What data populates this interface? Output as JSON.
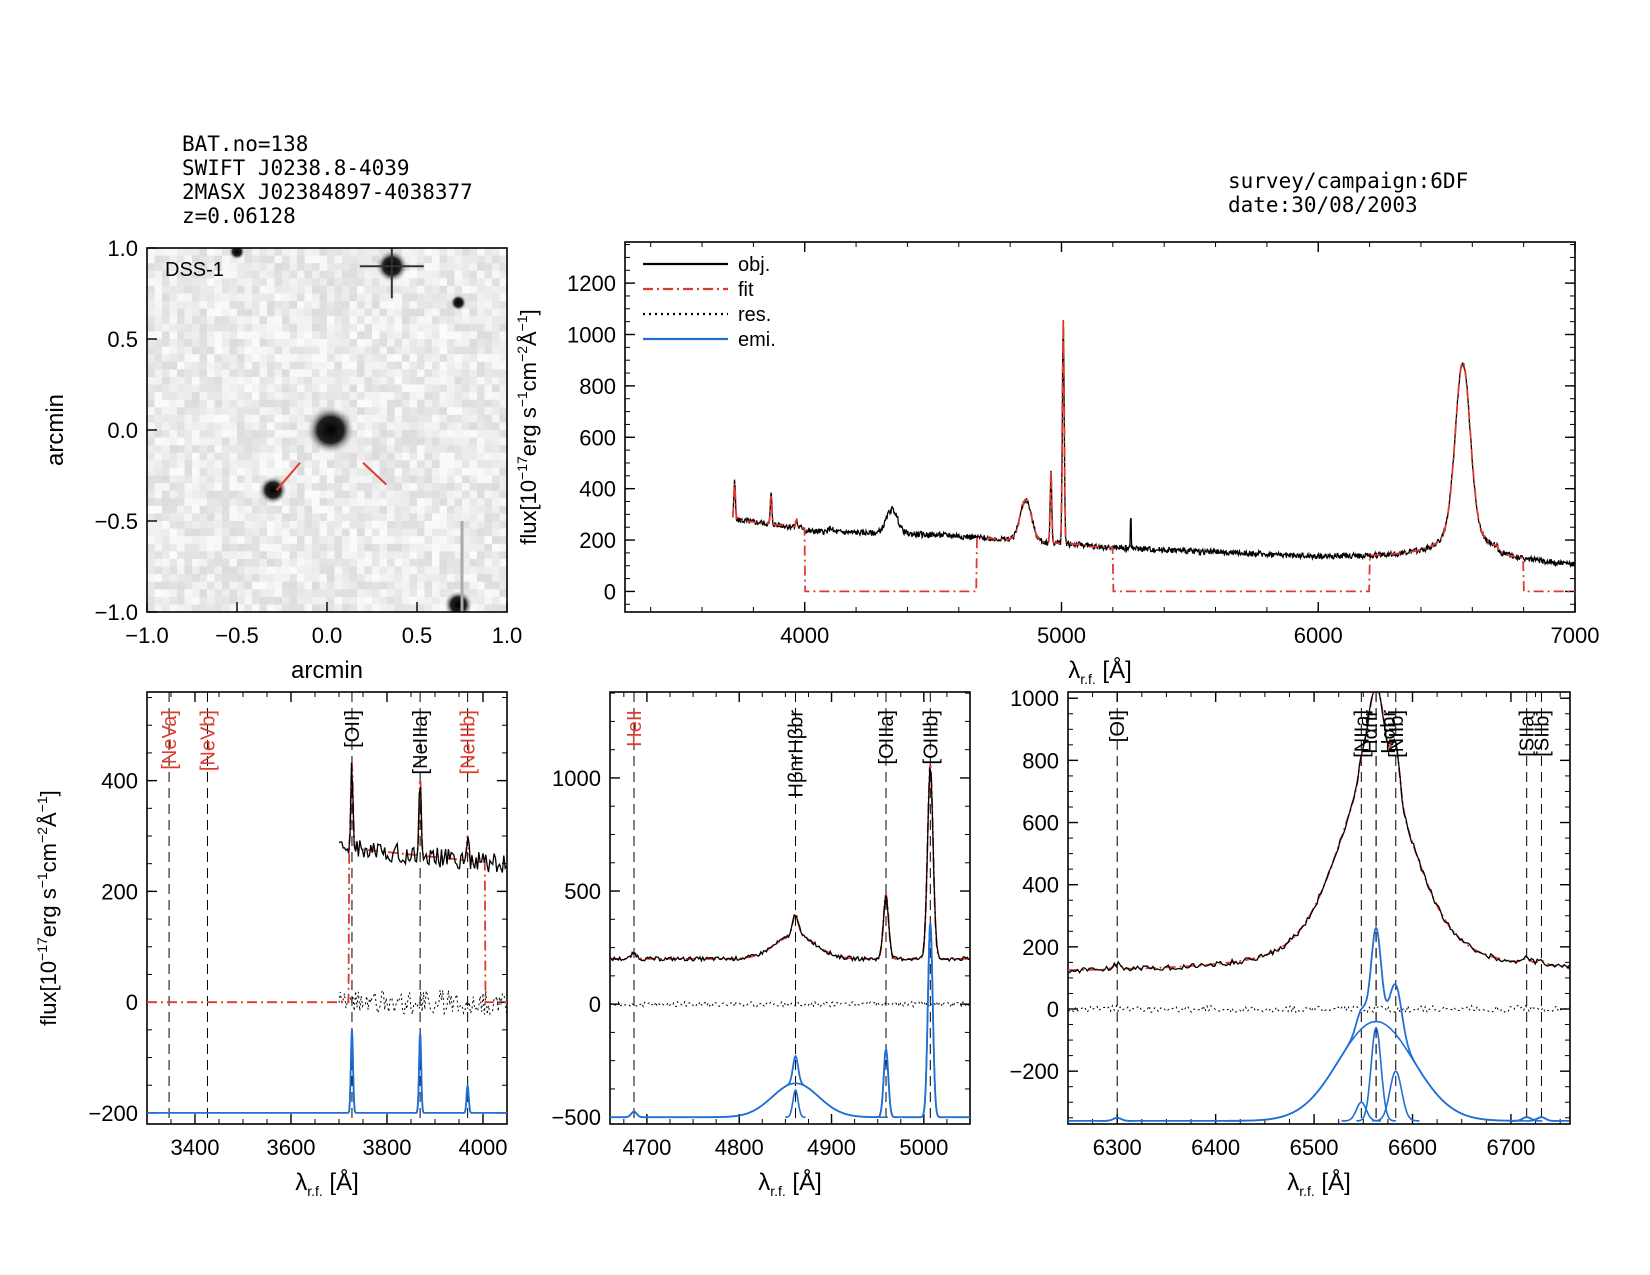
{
  "header": {
    "bat_no": "BAT.no=138",
    "swift": "SWIFT J0238.8-4039",
    "twomass": "2MASX J02384897-4038377",
    "redshift": "z=0.06128",
    "survey": "survey/campaign:6DF",
    "date": "date:30/08/2003"
  },
  "image_panel": {
    "label": "DSS-1",
    "xlabel": "arcmin",
    "ylabel": "arcmin",
    "xlim": [
      -1.0,
      1.0
    ],
    "ylim": [
      -1.0,
      1.0
    ],
    "xticks": [
      "−1.0",
      "−0.5",
      "0.0",
      "0.5",
      "1.0"
    ],
    "yticks": [
      "−1.0",
      "−0.5",
      "0.0",
      "0.5",
      "1.0"
    ],
    "sources": [
      {
        "x": 0.02,
        "y": 0.0,
        "size": "large"
      },
      {
        "x": -0.3,
        "y": -0.33,
        "size": "medium"
      },
      {
        "x": 0.36,
        "y": 0.9,
        "size": "star"
      },
      {
        "x": 0.73,
        "y": -0.96,
        "size": "medium"
      },
      {
        "x": -0.5,
        "y": 0.98,
        "size": "small"
      },
      {
        "x": 0.73,
        "y": 0.7,
        "size": "small"
      }
    ]
  },
  "colors": {
    "obj": "#000000",
    "fit": "#e03a2f",
    "res": "#000000",
    "emi": "#1f6fd6",
    "red_label": "#e03a2f"
  },
  "chart_data": [
    {
      "type": "line",
      "name": "full_spectrum",
      "xlabel": "λr.f. [Å]",
      "ylabel": "flux[10⁻¹⁷erg s⁻¹cm⁻²Å⁻¹]",
      "xlim": [
        3300,
        7000
      ],
      "ylim": [
        -80,
        1360
      ],
      "xticks": [
        4000,
        5000,
        6000,
        7000
      ],
      "yticks": [
        0,
        200,
        400,
        600,
        800,
        1000,
        1200
      ],
      "legend": [
        "obj.",
        "fit",
        "res.",
        "emi."
      ],
      "legend_position": "top-left",
      "lines": [
        {
          "center": 3727,
          "amp": 150,
          "sigma": 3
        },
        {
          "center": 3869,
          "amp": 120,
          "sigma": 3
        },
        {
          "center": 3968,
          "amp": 30,
          "sigma": 3
        },
        {
          "center": 4101,
          "amp": 15,
          "sigma": 6
        },
        {
          "center": 4340,
          "amp": 95,
          "sigma": 22
        },
        {
          "center": 4861,
          "amp": 160,
          "sigma": 22
        },
        {
          "center": 4959,
          "amp": 280,
          "sigma": 3
        },
        {
          "center": 5007,
          "amp": 870,
          "sigma": 3.5
        },
        {
          "center": 5270,
          "amp": 160,
          "sigma": 1.5
        },
        {
          "center": 6563,
          "amp": 600,
          "sigma": 28
        }
      ],
      "fit_segments": [
        [
          3720,
          4000
        ],
        [
          4670,
          5200
        ],
        [
          6200,
          6800
        ]
      ]
    },
    {
      "type": "line",
      "name": "neon_region",
      "xlabel": "λr.f. [Å]",
      "ylabel": "flux[10⁻¹⁷erg s⁻¹cm⁻²Å⁻¹]",
      "xlim": [
        3300,
        4050
      ],
      "ylim": [
        -220,
        560
      ],
      "xticks": [
        3400,
        3600,
        3800,
        4000
      ],
      "yticks": [
        -200,
        0,
        200,
        400
      ],
      "line_ids": [
        {
          "label": "[NeVa]",
          "x": 3346,
          "color": "red"
        },
        {
          "label": "[NeVb]",
          "x": 3426,
          "color": "red"
        },
        {
          "label": "[OII]",
          "x": 3727,
          "color": "black"
        },
        {
          "label": "[NeIIIa]",
          "x": 3869,
          "color": "black"
        },
        {
          "label": "[NeIIIb]",
          "x": 3968,
          "color": "red"
        }
      ],
      "obj_range": [
        3700,
        4050
      ],
      "fit_range": [
        3720,
        4005
      ],
      "continuum": 280,
      "lines": [
        {
          "center": 3727,
          "amp": 155,
          "sigma": 2.2
        },
        {
          "center": 3869,
          "amp": 140,
          "sigma": 2.2
        },
        {
          "center": 3968,
          "amp": 45,
          "sigma": 2.2
        }
      ],
      "emi_offset": -200,
      "emi_components": [
        {
          "center": 3727,
          "amp": 150,
          "sigma": 2.2
        },
        {
          "center": 3869,
          "amp": 145,
          "sigma": 2.2
        },
        {
          "center": 3968,
          "amp": 50,
          "sigma": 2.2
        }
      ]
    },
    {
      "type": "line",
      "name": "hbeta_region",
      "xlabel": "λr.f. [Å]",
      "xlim": [
        4660,
        5050
      ],
      "ylim": [
        -530,
        1380
      ],
      "xticks": [
        4700,
        4800,
        4900,
        5000
      ],
      "yticks": [
        -500,
        0,
        500,
        1000
      ],
      "line_ids": [
        {
          "label": "HeII",
          "x": 4686,
          "color": "red"
        },
        {
          "label": "HβnrHβbr",
          "x": 4861,
          "color": "black"
        },
        {
          "label": "[OIIIa]",
          "x": 4959,
          "color": "black"
        },
        {
          "label": "[OIIIb]",
          "x": 5007,
          "color": "black"
        }
      ],
      "continuum": 200,
      "lines": [
        {
          "center": 4686,
          "amp": 25,
          "sigma": 3
        },
        {
          "center": 4861,
          "amp": 105,
          "sigma": 22
        },
        {
          "center": 4861,
          "amp": 95,
          "sigma": 3
        },
        {
          "center": 4959,
          "amp": 285,
          "sigma": 2.8
        },
        {
          "center": 5007,
          "amp": 860,
          "sigma": 3
        }
      ],
      "emi_offset": -500,
      "emi_components": [
        {
          "center": 4686,
          "amp": 25,
          "sigma": 3
        },
        {
          "center": 4861,
          "amp": 150,
          "sigma": 25
        },
        {
          "center": 4861,
          "amp": 120,
          "sigma": 2.8
        },
        {
          "center": 4959,
          "amp": 300,
          "sigma": 2.5
        },
        {
          "center": 5007,
          "amp": 860,
          "sigma": 2.6
        }
      ]
    },
    {
      "type": "line",
      "name": "halpha_region",
      "xlabel": "λr.f. [Å]",
      "xlim": [
        6250,
        6760
      ],
      "ylim": [
        -370,
        1020
      ],
      "xticks": [
        6300,
        6400,
        6500,
        6600,
        6700
      ],
      "yticks": [
        -200,
        0,
        200,
        400,
        600,
        800,
        1000
      ],
      "line_ids": [
        {
          "label": "[OI]",
          "x": 6300,
          "color": "black"
        },
        {
          "label": "[NIIa]",
          "x": 6548,
          "color": "black"
        },
        {
          "label": "Hαnr",
          "x": 6563,
          "color": "black"
        },
        {
          "label": "Hαbr",
          "x": 6563,
          "color": "black"
        },
        {
          "label": "[NIIb]",
          "x": 6583,
          "color": "black"
        },
        {
          "label": "[SIIa]",
          "x": 6716,
          "color": "black"
        },
        {
          "label": "[SIIb]",
          "x": 6731,
          "color": "black"
        }
      ],
      "continuum": 130,
      "lines": [
        {
          "center": 6300,
          "amp": 15,
          "sigma": 4
        },
        {
          "center": 6563,
          "amp": 360,
          "sigma": 38
        },
        {
          "center": 6563,
          "amp": 220,
          "sigma": 8
        },
        {
          "center": 6548,
          "amp": 40,
          "sigma": 3
        },
        {
          "center": 6583,
          "amp": 150,
          "sigma": 4
        },
        {
          "center": 6716,
          "amp": 15,
          "sigma": 4
        },
        {
          "center": 6731,
          "amp": 12,
          "sigma": 4
        }
      ],
      "emi_offset": -360,
      "emi_components": [
        {
          "center": 6300,
          "amp": 10,
          "sigma": 4
        },
        {
          "center": 6563,
          "amp": 320,
          "sigma": 38
        },
        {
          "center": 6563,
          "amp": 300,
          "sigma": 5
        },
        {
          "center": 6548,
          "amp": 60,
          "sigma": 5
        },
        {
          "center": 6583,
          "amp": 160,
          "sigma": 6
        },
        {
          "center": 6716,
          "amp": 12,
          "sigma": 4
        },
        {
          "center": 6731,
          "amp": 12,
          "sigma": 4
        }
      ]
    }
  ]
}
